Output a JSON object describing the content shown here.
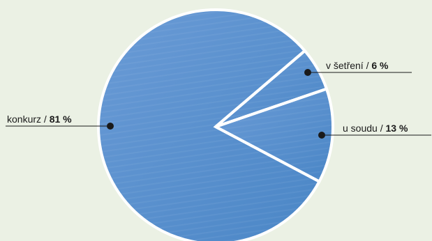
{
  "chart_data": {
    "type": "pie",
    "title": "",
    "slices": [
      {
        "label": "konkurz",
        "value": 81,
        "unit": "%"
      },
      {
        "label": "v šetření",
        "value": 6,
        "unit": "%"
      },
      {
        "label": "u soudu",
        "value": 13,
        "unit": "%"
      }
    ],
    "labels": [
      {
        "name": "konkurz",
        "separator": " / ",
        "value_text": "81 %"
      },
      {
        "name": "v šetření",
        "separator": " / ",
        "value_text": "6 %"
      },
      {
        "name": "u soudu",
        "separator": " / ",
        "value_text": "13 %"
      }
    ],
    "legend": "none",
    "grid": false
  },
  "colors": {
    "background": "#ebf1e4",
    "slice": "#4a86c6",
    "slice_light": "#6a9bd6",
    "border": "#ffffff",
    "leader": "#1a1a1a"
  }
}
